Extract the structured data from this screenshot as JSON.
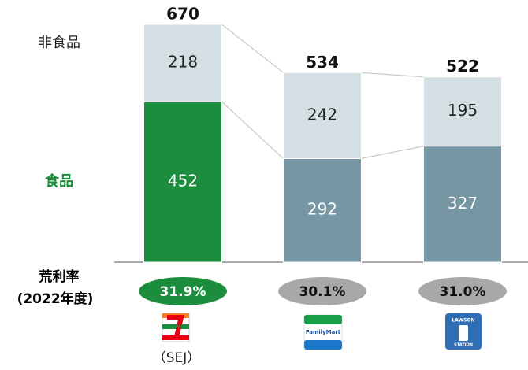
{
  "chart_data": {
    "type": "stacked_bar",
    "categories": [
      "（SEJ）",
      null,
      null
    ],
    "series": [
      {
        "name": "食品",
        "color": "#7696a3",
        "colors": [
          "#1b8d3c",
          "#7696a3",
          "#7696a3"
        ],
        "values": [
          452,
          292,
          327
        ]
      },
      {
        "name": "非食品",
        "color": "#d3dfe3",
        "values": [
          218,
          242,
          195
        ]
      }
    ],
    "totals": [
      670,
      534,
      522
    ],
    "margin": {
      "label": [
        "荒利率",
        "(2022年度)"
      ],
      "values": [
        31.9,
        30.1,
        31.0
      ],
      "value_labels": [
        "31.9%",
        "30.1%",
        "31.0%"
      ],
      "colors": [
        "#1b8d3c",
        "#a8a8a8",
        "#a8a8a8"
      ]
    },
    "logos": [
      "ELEVEN",
      "FamilyMart",
      "LAWSON",
      "STATION"
    ]
  }
}
